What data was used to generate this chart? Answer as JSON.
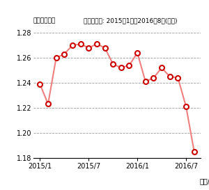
{
  "title_left": "（兆米ドル）",
  "title_right": "データ期間: 2015年1月〜2016年8月(月次)",
  "xlabel": "（年/月）",
  "ylim": [
    1.18,
    1.285
  ],
  "yticks": [
    1.18,
    1.2,
    1.22,
    1.24,
    1.26,
    1.28
  ],
  "xtick_labels": [
    "2015/1",
    "2015/7",
    "2016/1",
    "2016/7"
  ],
  "line_color": "#f08080",
  "marker_face": "#ffffff",
  "marker_edge": "#cc0000",
  "grid_color": "#999999",
  "values": [
    1.239,
    1.223,
    1.26,
    1.263,
    1.27,
    1.271,
    1.268,
    1.271,
    1.268,
    1.255,
    1.252,
    1.254,
    1.264,
    1.241,
    1.244,
    1.252,
    1.245,
    1.244,
    1.221,
    1.185
  ]
}
